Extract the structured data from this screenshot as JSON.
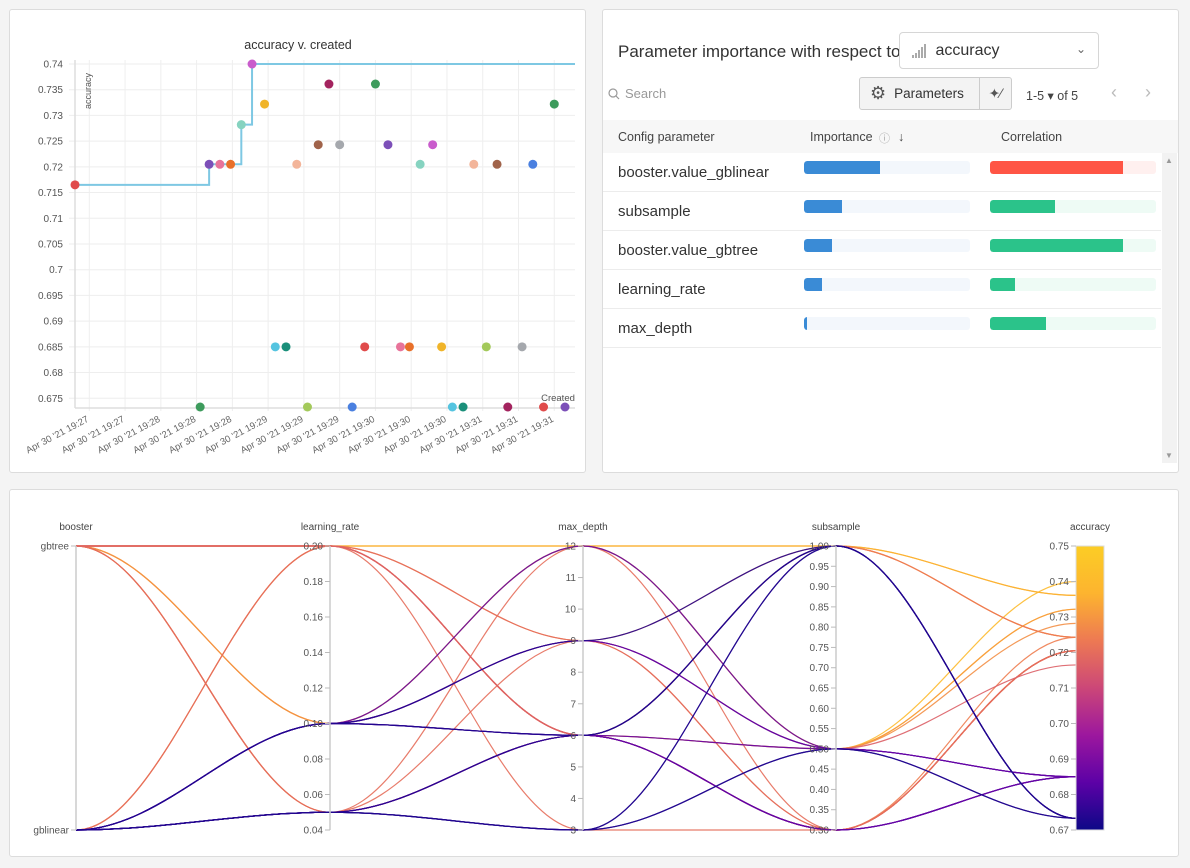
{
  "scatter": {
    "chart_data": {
      "type": "scatter",
      "title": "accuracy v. created",
      "xlabel": "Created",
      "ylabel": "accuracy",
      "ylim": [
        0.6733,
        0.74
      ],
      "yticks": [
        "0.74",
        "0.735",
        "0.73",
        "0.725",
        "0.72",
        "0.715",
        "0.71",
        "0.705",
        "0.7",
        "0.695",
        "0.69",
        "0.685",
        "0.68",
        "0.675"
      ],
      "xticks": [
        "Apr 30 '21 19:27",
        "Apr 30 '21 19:27",
        "Apr 30 '21 19:28",
        "Apr 30 '21 19:28",
        "Apr 30 '21 19:28",
        "Apr 30 '21 19:29",
        "Apr 30 '21 19:29",
        "Apr 30 '21 19:29",
        "Apr 30 '21 19:30",
        "Apr 30 '21 19:30",
        "Apr 30 '21 19:30",
        "Apr 30 '21 19:31",
        "Apr 30 '21 19:31",
        "Apr 30 '21 19:31"
      ],
      "xtick_times": [
        "19:27:20",
        "19:27:40",
        "19:28:00",
        "19:28:20",
        "19:28:40",
        "19:29:00",
        "19:29:20",
        "19:29:40",
        "19:30:00",
        "19:30:20",
        "19:30:40",
        "19:31:00",
        "19:31:20",
        "19:31:40"
      ],
      "xlim": [
        "19:27:12",
        "19:31:46"
      ],
      "grid": true,
      "running_max_line": true,
      "line_color": "#7ec8e3",
      "palette": [
        "#e04b4b",
        "#3d9b5c",
        "#7c4fb8",
        "#e8739a",
        "#e8702a",
        "#86d3c0",
        "#c95ccc",
        "#f0b429",
        "#55c4e0",
        "#1a8f7a",
        "#f3b59a",
        "#a3c95a",
        "#a0634a",
        "#a3235e",
        "#a5a8ad",
        "#4a80e0"
      ],
      "points": [
        {
          "t": "19:27:12",
          "y": 0.7165
        },
        {
          "t": "19:28:22",
          "y": 0.6733
        },
        {
          "t": "19:28:27",
          "y": 0.7205
        },
        {
          "t": "19:28:33",
          "y": 0.7205
        },
        {
          "t": "19:28:39",
          "y": 0.7205
        },
        {
          "t": "19:28:45",
          "y": 0.7282
        },
        {
          "t": "19:28:51",
          "y": 0.74
        },
        {
          "t": "19:28:58",
          "y": 0.7322
        },
        {
          "t": "19:29:04",
          "y": 0.685
        },
        {
          "t": "19:29:10",
          "y": 0.685
        },
        {
          "t": "19:29:16",
          "y": 0.7205
        },
        {
          "t": "19:29:22",
          "y": 0.6733
        },
        {
          "t": "19:29:28",
          "y": 0.7243
        },
        {
          "t": "19:29:34",
          "y": 0.7361
        },
        {
          "t": "19:29:40",
          "y": 0.7243
        },
        {
          "t": "19:29:47",
          "y": 0.6733
        },
        {
          "t": "19:29:54",
          "y": 0.685
        },
        {
          "t": "19:30:00",
          "y": 0.7361
        },
        {
          "t": "19:30:07",
          "y": 0.7243
        },
        {
          "t": "19:30:14",
          "y": 0.685
        },
        {
          "t": "19:30:19",
          "y": 0.685
        },
        {
          "t": "19:30:25",
          "y": 0.7205
        },
        {
          "t": "19:30:32",
          "y": 0.7243
        },
        {
          "t": "19:30:37",
          "y": 0.685
        },
        {
          "t": "19:30:43",
          "y": 0.6733
        },
        {
          "t": "19:30:49",
          "y": 0.6733
        },
        {
          "t": "19:30:55",
          "y": 0.7205
        },
        {
          "t": "19:31:02",
          "y": 0.685
        },
        {
          "t": "19:31:08",
          "y": 0.7205
        },
        {
          "t": "19:31:14",
          "y": 0.6733
        },
        {
          "t": "19:31:22",
          "y": 0.685
        },
        {
          "t": "19:31:28",
          "y": 0.7205
        },
        {
          "t": "19:31:34",
          "y": 0.6733
        },
        {
          "t": "19:31:40",
          "y": 0.7322
        },
        {
          "t": "19:31:46",
          "y": 0.6733
        }
      ]
    }
  },
  "importance": {
    "title": "Parameter importance with respect to",
    "metric": "accuracy",
    "search_placeholder": "Search",
    "parameters_label": "Parameters",
    "pager": "1-5 ▾  of 5",
    "headers": {
      "param": "Config parameter",
      "importance": "Importance",
      "correlation": "Correlation"
    },
    "colors": {
      "importance": "#3a8bd6",
      "positive": "#2bc38a",
      "negative": "#ff5545"
    },
    "rows": [
      {
        "name": "booster.value_gblinear",
        "importance": 0.46,
        "correlation": -0.8
      },
      {
        "name": "subsample",
        "importance": 0.23,
        "correlation": 0.39
      },
      {
        "name": "booster.value_gbtree",
        "importance": 0.17,
        "correlation": 0.8
      },
      {
        "name": "learning_rate",
        "importance": 0.11,
        "correlation": 0.15
      },
      {
        "name": "max_depth",
        "importance": 0.02,
        "correlation": 0.34
      }
    ]
  },
  "parallel": {
    "chart_data": {
      "type": "parallel_coordinates",
      "axes": [
        {
          "name": "booster",
          "type": "categorical",
          "categories": [
            "gblinear",
            "gbtree"
          ],
          "ticks": [
            "gbtree",
            "gblinear"
          ]
        },
        {
          "name": "learning_rate",
          "range": [
            0.04,
            0.2
          ],
          "ticks": [
            "0.20",
            "0.18",
            "0.16",
            "0.14",
            "0.12",
            "0.10",
            "0.08",
            "0.06",
            "0.04"
          ]
        },
        {
          "name": "max_depth",
          "range": [
            3,
            12
          ],
          "ticks": [
            "12",
            "11",
            "10",
            "9",
            "8",
            "7",
            "6",
            "5",
            "4",
            "3"
          ]
        },
        {
          "name": "subsample",
          "range": [
            0.3,
            1.0
          ],
          "ticks": [
            "1.00",
            "0.95",
            "0.90",
            "0.85",
            "0.80",
            "0.75",
            "0.70",
            "0.65",
            "0.60",
            "0.55",
            "0.50",
            "0.45",
            "0.40",
            "0.35",
            "0.30"
          ]
        },
        {
          "name": "accuracy",
          "range": [
            0.67,
            0.75
          ],
          "ticks": [
            "0.75",
            "0.74",
            "0.73",
            "0.72",
            "0.71",
            "0.70",
            "0.69",
            "0.68",
            "0.67"
          ]
        }
      ],
      "colorscale": [
        "#0d0887",
        "#5c01a6",
        "#9c179e",
        "#cc4778",
        "#ed7953",
        "#fdb42f",
        "#fccd25"
      ],
      "runs": [
        [
          "gbtree",
          0.2,
          6,
          0.5,
          0.7165
        ],
        [
          "gblinear",
          0.05,
          3,
          1.0,
          0.6733
        ],
        [
          "gbtree",
          0.2,
          6,
          0.3,
          0.7205
        ],
        [
          "gbtree",
          0.05,
          12,
          0.3,
          0.7205
        ],
        [
          "gbtree",
          0.2,
          9,
          0.3,
          0.7205
        ],
        [
          "gbtree",
          0.1,
          12,
          0.5,
          0.7282
        ],
        [
          "gbtree",
          0.1,
          12,
          0.5,
          0.74
        ],
        [
          "gbtree",
          0.05,
          6,
          0.5,
          0.7322
        ],
        [
          "gblinear",
          0.1,
          6,
          0.5,
          0.685
        ],
        [
          "gblinear",
          0.1,
          9,
          0.5,
          0.685
        ],
        [
          "gbtree",
          0.2,
          6,
          0.3,
          0.7205
        ],
        [
          "gblinear",
          0.05,
          3,
          1.0,
          0.6733
        ],
        [
          "gblinear",
          0.2,
          6,
          1.0,
          0.7243
        ],
        [
          "gbtree",
          0.2,
          12,
          1.0,
          0.7361
        ],
        [
          "gbtree",
          0.2,
          6,
          0.3,
          0.7243
        ],
        [
          "gblinear",
          0.1,
          6,
          1.0,
          0.6733
        ],
        [
          "gblinear",
          0.05,
          6,
          0.3,
          0.685
        ],
        [
          "gbtree",
          0.2,
          12,
          1.0,
          0.7361
        ],
        [
          "gblinear",
          0.2,
          9,
          1.0,
          0.7243
        ],
        [
          "gblinear",
          0.1,
          9,
          0.5,
          0.685
        ],
        [
          "gblinear",
          0.1,
          6,
          0.3,
          0.685
        ],
        [
          "gbtree",
          0.05,
          9,
          0.3,
          0.7205
        ],
        [
          "gbtree",
          0.2,
          6,
          1.0,
          0.7243
        ],
        [
          "gblinear",
          0.05,
          6,
          0.3,
          0.685
        ],
        [
          "gblinear",
          0.05,
          3,
          0.5,
          0.6733
        ],
        [
          "gblinear",
          0.1,
          6,
          1.0,
          0.6733
        ],
        [
          "gbtree",
          0.05,
          6,
          0.3,
          0.7205
        ],
        [
          "gblinear",
          0.1,
          12,
          0.5,
          0.685
        ],
        [
          "gblinear",
          0.2,
          6,
          0.3,
          0.7205
        ],
        [
          "gblinear",
          0.05,
          6,
          1.0,
          0.6733
        ],
        [
          "gblinear",
          0.05,
          6,
          0.3,
          0.685
        ],
        [
          "gbtree",
          0.2,
          3,
          0.3,
          0.7205
        ],
        [
          "gblinear",
          0.05,
          3,
          0.5,
          0.6733
        ],
        [
          "gbtree",
          0.1,
          9,
          0.5,
          0.7322
        ],
        [
          "gblinear",
          0.1,
          9,
          1.0,
          0.6733
        ]
      ]
    }
  }
}
